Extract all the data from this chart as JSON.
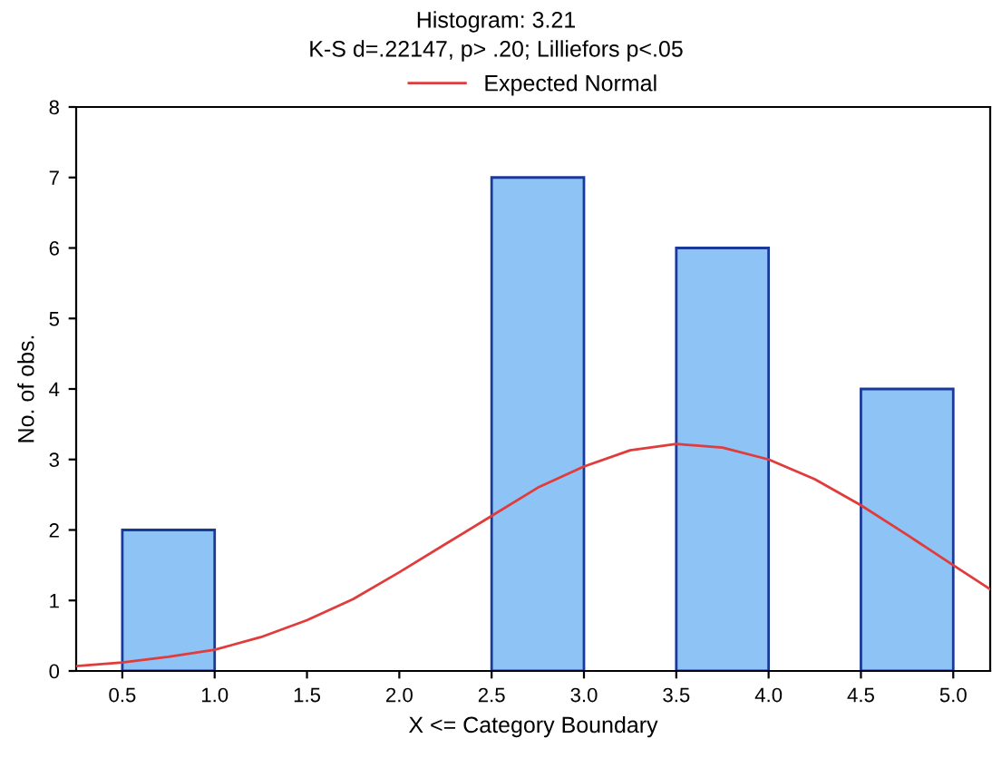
{
  "chart_data": {
    "type": "histogram",
    "title": "Histogram: 3.21",
    "subtitle": "K-S d=.22147, p> .20; Lilliefors p<.05",
    "xlabel": "X <= Category Boundary",
    "ylabel": "No. of obs.",
    "series": [
      {
        "bins": [
          0.5,
          1.0,
          1.5,
          2.0,
          2.5,
          3.0,
          3.5,
          4.0,
          4.5,
          5.0
        ],
        "values": [
          2,
          0,
          0,
          0,
          7,
          0,
          6,
          0,
          4
        ],
        "color": "#8ec3f5"
      },
      {
        "type": "line",
        "name": "Expected Normal",
        "color": "#e03c3c",
        "x": [
          0.25,
          0.5,
          0.75,
          1.0,
          1.25,
          1.5,
          1.75,
          2.0,
          2.25,
          2.5,
          2.75,
          3.0,
          3.25,
          3.5,
          3.75,
          4.0,
          4.25,
          4.5,
          4.75,
          5.0,
          5.2
        ],
        "values": [
          0.07,
          0.12,
          0.2,
          0.3,
          0.48,
          0.72,
          1.02,
          1.4,
          1.8,
          2.2,
          2.6,
          2.9,
          3.13,
          3.22,
          3.17,
          3.0,
          2.72,
          2.35,
          1.93,
          1.5,
          1.16
        ]
      }
    ],
    "xlim": [
      0.25,
      5.2
    ],
    "xticks": [
      {
        "value": 0.5,
        "label": "0.5"
      },
      {
        "value": 1,
        "label": "1.0"
      },
      {
        "value": 1.5,
        "label": "1.5"
      },
      {
        "value": 2,
        "label": "2.0"
      },
      {
        "value": 2.5,
        "label": "2.5"
      },
      {
        "value": 3,
        "label": "3.0"
      },
      {
        "value": 3.5,
        "label": "3.5"
      },
      {
        "value": 4,
        "label": "4.0"
      },
      {
        "value": 4.5,
        "label": "4.5"
      },
      {
        "value": 5,
        "label": "5.0"
      }
    ],
    "ylim": [
      0,
      8
    ],
    "yticks": [
      0,
      1,
      2,
      3,
      4,
      5,
      6,
      7,
      8
    ],
    "grid": false,
    "legend": "top"
  }
}
